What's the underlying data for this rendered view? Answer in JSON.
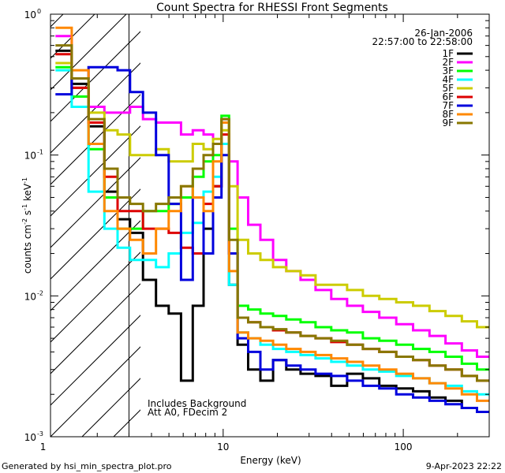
{
  "chart_data": {
    "type": "line",
    "title": "Count Spectra for RHESSI Front Segments",
    "xlabel": "Energy (keV)",
    "ylabel_base": "counts cm",
    "ylabel_parts": [
      "counts cm",
      "-2",
      " s",
      "-1",
      " keV",
      "-1"
    ],
    "xscale": "log",
    "yscale": "log",
    "xlim": [
      1.1,
      300
    ],
    "ylim": [
      0.001,
      1
    ],
    "x_tick_labels": [
      {
        "value": 1,
        "label": "1"
      },
      {
        "value": 10,
        "label": "10"
      },
      {
        "value": 100,
        "label": "100"
      }
    ],
    "y_tick_labels": [
      {
        "value": 1,
        "base": "10",
        "exp": "0"
      },
      {
        "value": 0.1,
        "base": "10",
        "exp": "-1"
      },
      {
        "value": 0.01,
        "base": "10",
        "exp": "-2"
      },
      {
        "value": 0.001,
        "base": "10",
        "exp": "-3"
      }
    ],
    "date": "26-Jan-2006",
    "time_range": "22:57:00 to 22:58:00",
    "annotations": [
      "Includes Background",
      "Att A0, FDecim 2"
    ],
    "hatched_below_keV": 3,
    "footer_left": "Generated by hsi_min_spectra_plot.pro",
    "footer_right": "9-Apr-2023 22:22",
    "energy_bins": [
      1.3,
      1.6,
      2.0,
      2.4,
      2.8,
      3.3,
      3.9,
      4.6,
      5.4,
      6.3,
      7.3,
      8.3,
      9.3,
      10.3,
      11.3,
      12.8,
      14.8,
      17.5,
      20.5,
      24.5,
      29.5,
      36,
      44,
      54,
      66,
      82,
      102,
      126,
      155,
      190,
      235,
      280
    ],
    "series": [
      {
        "name": "1F",
        "color": "#000000",
        "values": [
          0.55,
          0.32,
          0.16,
          0.055,
          0.035,
          0.028,
          0.013,
          0.0085,
          0.0075,
          0.0025,
          0.0085,
          0.03,
          0.06,
          0.12,
          0.012,
          0.0045,
          0.003,
          0.0025,
          0.0035,
          0.003,
          0.0028,
          0.0027,
          0.0023,
          0.0028,
          0.0026,
          0.0023,
          0.0022,
          0.0021,
          0.0019,
          0.0018,
          0.0016,
          0.0015
        ]
      },
      {
        "name": "2F",
        "color": "#ff00ff",
        "values": [
          0.7,
          0.3,
          0.22,
          0.2,
          0.2,
          0.22,
          0.18,
          0.17,
          0.17,
          0.14,
          0.15,
          0.14,
          0.12,
          0.18,
          0.09,
          0.05,
          0.032,
          0.025,
          0.018,
          0.015,
          0.013,
          0.011,
          0.0095,
          0.0085,
          0.0077,
          0.007,
          0.0063,
          0.0057,
          0.0052,
          0.0046,
          0.0041,
          0.0037
        ]
      },
      {
        "name": "3F",
        "color": "#00ff00",
        "values": [
          0.42,
          0.26,
          0.11,
          0.05,
          0.03,
          0.03,
          0.04,
          0.04,
          0.045,
          0.05,
          0.07,
          0.09,
          0.1,
          0.19,
          0.03,
          0.0085,
          0.008,
          0.0075,
          0.0072,
          0.0068,
          0.0065,
          0.006,
          0.0057,
          0.0055,
          0.005,
          0.0048,
          0.0045,
          0.0042,
          0.004,
          0.0037,
          0.0033,
          0.003
        ]
      },
      {
        "name": "4F",
        "color": "#00ffff",
        "values": [
          0.4,
          0.22,
          0.055,
          0.03,
          0.022,
          0.018,
          0.018,
          0.016,
          0.02,
          0.028,
          0.033,
          0.055,
          0.07,
          0.12,
          0.012,
          0.0055,
          0.005,
          0.0045,
          0.0042,
          0.004,
          0.0038,
          0.0036,
          0.0034,
          0.0032,
          0.003,
          0.0029,
          0.0027,
          0.0026,
          0.0024,
          0.0023,
          0.0021,
          0.002
        ]
      },
      {
        "name": "5F",
        "color": "#cccc00",
        "values": [
          0.45,
          0.3,
          0.2,
          0.15,
          0.14,
          0.1,
          0.1,
          0.11,
          0.09,
          0.09,
          0.12,
          0.11,
          0.13,
          0.15,
          0.06,
          0.025,
          0.02,
          0.018,
          0.016,
          0.015,
          0.014,
          0.012,
          0.012,
          0.011,
          0.01,
          0.0095,
          0.009,
          0.0085,
          0.0078,
          0.0072,
          0.0066,
          0.006
        ]
      },
      {
        "name": "6F",
        "color": "#dd0000",
        "values": [
          0.52,
          0.3,
          0.17,
          0.07,
          0.04,
          0.04,
          0.03,
          0.03,
          0.028,
          0.022,
          0.02,
          0.045,
          0.06,
          0.14,
          0.02,
          0.007,
          0.0065,
          0.006,
          0.0057,
          0.0055,
          0.0052,
          0.005,
          0.0047,
          0.0045,
          0.0042,
          0.004,
          0.0037,
          0.0035,
          0.0032,
          0.003,
          0.0027,
          0.0025
        ]
      },
      {
        "name": "7F",
        "color": "#0000dd",
        "values": [
          0.27,
          0.35,
          0.42,
          0.42,
          0.4,
          0.28,
          0.2,
          0.1,
          0.045,
          0.013,
          0.05,
          0.02,
          0.05,
          0.1,
          0.02,
          0.005,
          0.004,
          0.003,
          0.0035,
          0.0032,
          0.003,
          0.0028,
          0.0027,
          0.0025,
          0.0023,
          0.0022,
          0.002,
          0.0019,
          0.0018,
          0.0017,
          0.0016,
          0.0015
        ]
      },
      {
        "name": "8F",
        "color": "#ff8800",
        "values": [
          0.8,
          0.4,
          0.12,
          0.04,
          0.03,
          0.025,
          0.02,
          0.03,
          0.04,
          0.06,
          0.05,
          0.04,
          0.09,
          0.17,
          0.015,
          0.0055,
          0.005,
          0.0048,
          0.0045,
          0.0042,
          0.004,
          0.0038,
          0.0036,
          0.0034,
          0.0032,
          0.003,
          0.0028,
          0.0026,
          0.0024,
          0.0022,
          0.002,
          0.0018
        ]
      },
      {
        "name": "9F",
        "color": "#887700",
        "values": [
          0.6,
          0.35,
          0.18,
          0.08,
          0.05,
          0.045,
          0.04,
          0.045,
          0.05,
          0.06,
          0.08,
          0.1,
          0.12,
          0.18,
          0.025,
          0.007,
          0.0065,
          0.006,
          0.0058,
          0.0055,
          0.0052,
          0.005,
          0.0048,
          0.0045,
          0.0042,
          0.004,
          0.0037,
          0.0035,
          0.0032,
          0.003,
          0.0027,
          0.0025
        ]
      }
    ]
  }
}
